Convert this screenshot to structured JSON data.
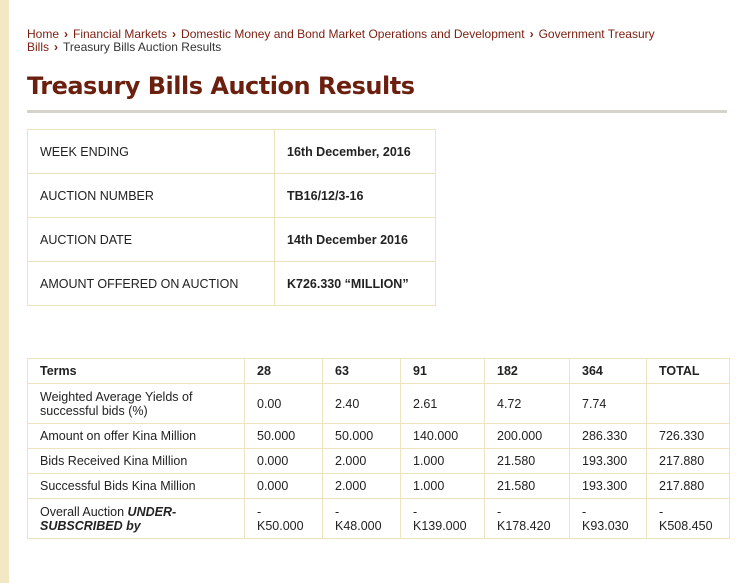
{
  "breadcrumb": {
    "items": [
      "Home",
      "Financial Markets",
      "Domestic Money and Bond Market Operations and Development",
      "Government Treasury Bills"
    ],
    "current": "Treasury Bills Auction Results"
  },
  "page_title": "Treasury Bills Auction Results",
  "auction_info": [
    {
      "label": "WEEK ENDING",
      "value": "16th December, 2016"
    },
    {
      "label": "AUCTION NUMBER",
      "value": "TB16/12/3-16"
    },
    {
      "label": "AUCTION DATE",
      "value": "14th December 2016"
    },
    {
      "label": "AMOUNT OFFERED ON AUCTION",
      "value": "K726.330 “MILLION”"
    }
  ],
  "results_table": {
    "headers": [
      "Terms",
      "28",
      "63",
      "91",
      "182",
      "364",
      "TOTAL"
    ],
    "rows": [
      {
        "label": "Weighted Average Yields of successful bids (%)",
        "values": [
          "0.00",
          "2.40",
          "2.61",
          "4.72",
          "7.74",
          ""
        ]
      },
      {
        "label": "Amount on offer Kina Million",
        "values": [
          "50.000",
          "50.000",
          "140.000",
          "200.000",
          "286.330",
          "726.330"
        ]
      },
      {
        "label": "Bids Received Kina Million",
        "values": [
          "0.000",
          "2.000",
          "1.000",
          "21.580",
          "193.300",
          "217.880"
        ]
      },
      {
        "label": "Successful Bids Kina Million",
        "values": [
          "0.000",
          "2.000",
          "1.000",
          "21.580",
          "193.300",
          "217.880"
        ]
      }
    ],
    "last_row": {
      "label_prefix": "Overall Auction ",
      "label_emphasis": "UNDER-SUBSCRIBED by",
      "sign": "-",
      "values": [
        "K50.000",
        "K48.000",
        "K139.000",
        "K178.420",
        "K93.030",
        "K508.450"
      ]
    }
  }
}
